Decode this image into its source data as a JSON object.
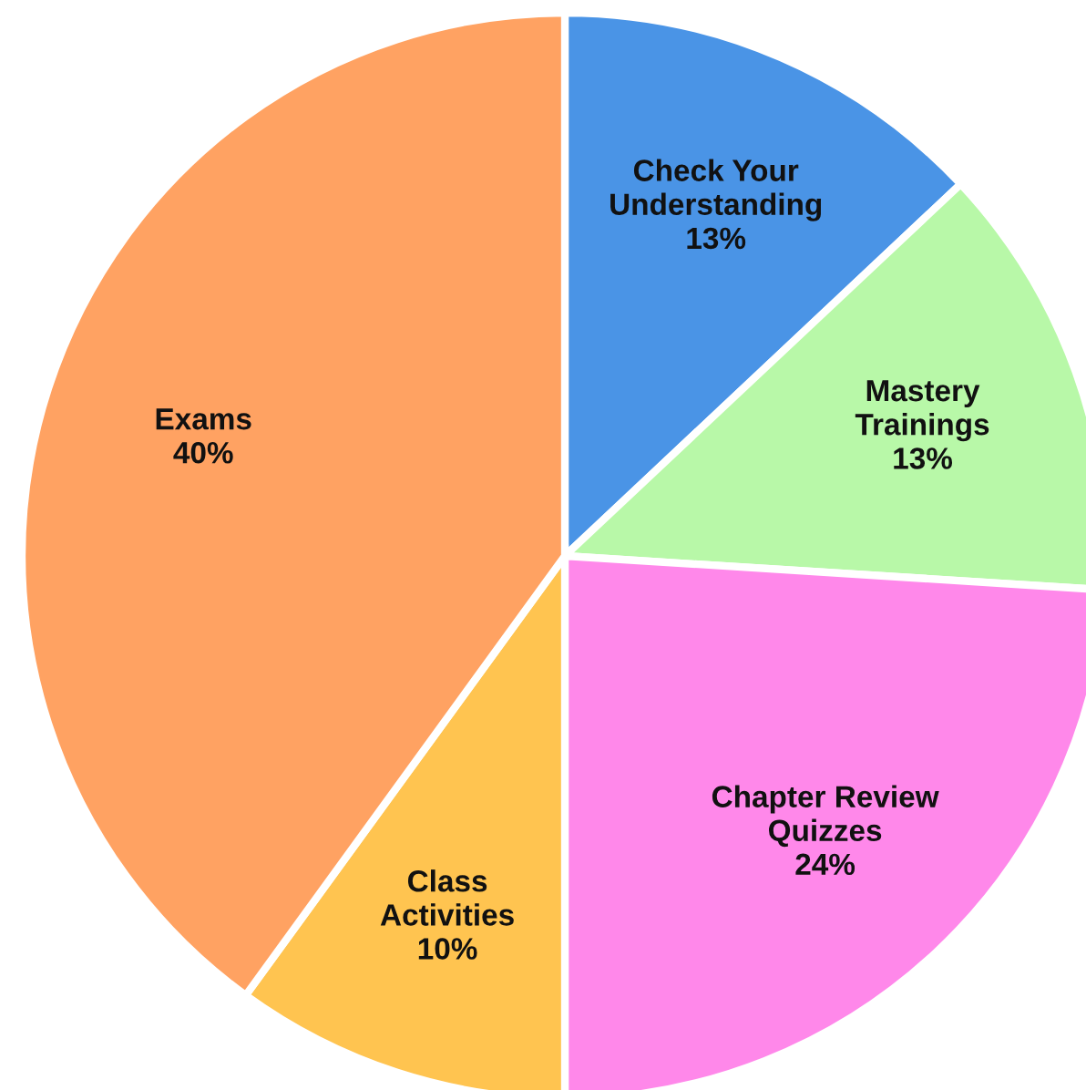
{
  "chart_data": {
    "type": "pie",
    "categories": [
      "Check Your\nUnderstanding",
      "Mastery\nTrainings",
      "Chapter Review\nQuizzes",
      "Class\nActivities",
      "Exams"
    ],
    "values": [
      13,
      13,
      24,
      10,
      40
    ],
    "value_labels": [
      "13%",
      "13%",
      "24%",
      "10%",
      "40%"
    ],
    "colors": [
      "#4a94e6",
      "#b8f8a8",
      "#ff88ea",
      "#ffc450",
      "#ffa262"
    ]
  }
}
